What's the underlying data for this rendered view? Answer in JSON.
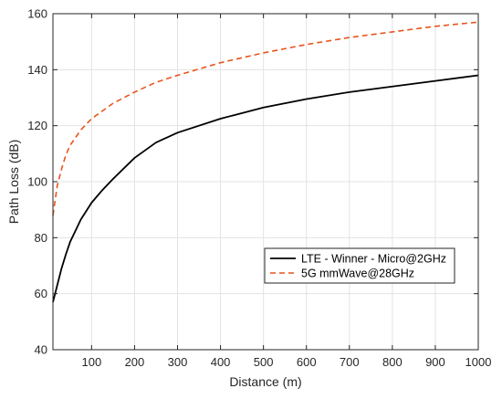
{
  "chart_data": {
    "type": "line",
    "xlabel": "Distance (m)",
    "ylabel": "Path Loss (dB)",
    "xlim": [
      10,
      1000
    ],
    "ylim": [
      40,
      160
    ],
    "xticks": [
      100,
      200,
      300,
      400,
      500,
      600,
      700,
      800,
      900,
      1000
    ],
    "yticks": [
      40,
      60,
      80,
      100,
      120,
      140,
      160
    ],
    "grid": true,
    "legend_position": "lower-right",
    "series": [
      {
        "name": "LTE - Winner - Micro@2GHz",
        "color": "#000000",
        "style": "solid",
        "x": [
          10,
          20,
          30,
          40,
          50,
          75,
          100,
          125,
          150,
          200,
          250,
          300,
          400,
          500,
          600,
          700,
          800,
          900,
          1000
        ],
        "y": [
          57,
          63,
          69,
          74,
          78.5,
          86.5,
          92.5,
          97,
          101,
          108.5,
          114,
          117.5,
          122.5,
          126.5,
          129.5,
          132,
          134,
          136,
          138
        ]
      },
      {
        "name": "5G mmWave@28GHz",
        "color": "#e8541c",
        "style": "dashed",
        "x": [
          10,
          20,
          30,
          40,
          50,
          75,
          100,
          150,
          200,
          250,
          300,
          400,
          500,
          600,
          700,
          800,
          900,
          1000
        ],
        "y": [
          88,
          98.5,
          104.5,
          109.5,
          113,
          118.5,
          122.5,
          128,
          132,
          135.5,
          138,
          142.5,
          146,
          149,
          151.5,
          153.5,
          155.5,
          157
        ]
      }
    ]
  }
}
